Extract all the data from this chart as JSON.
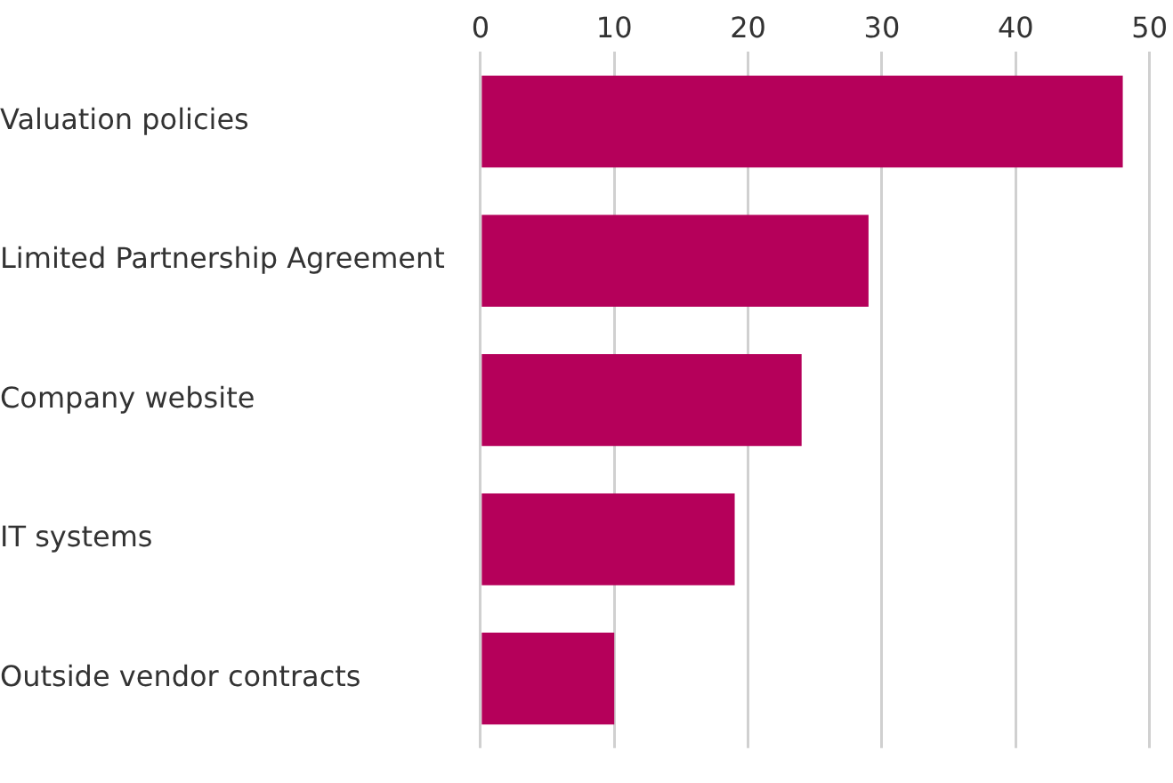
{
  "chart_data": {
    "type": "bar",
    "orientation": "horizontal",
    "categories": [
      "Valuation policies",
      "Limited Partnership Agreement",
      "Company website",
      "IT systems",
      "Outside vendor contracts"
    ],
    "values": [
      48,
      29,
      24,
      19,
      10
    ],
    "color": "#b5005a",
    "xlim": [
      0,
      50
    ],
    "xticks": [
      0,
      10,
      20,
      30,
      40,
      50
    ],
    "grid": "x",
    "legend": false
  }
}
